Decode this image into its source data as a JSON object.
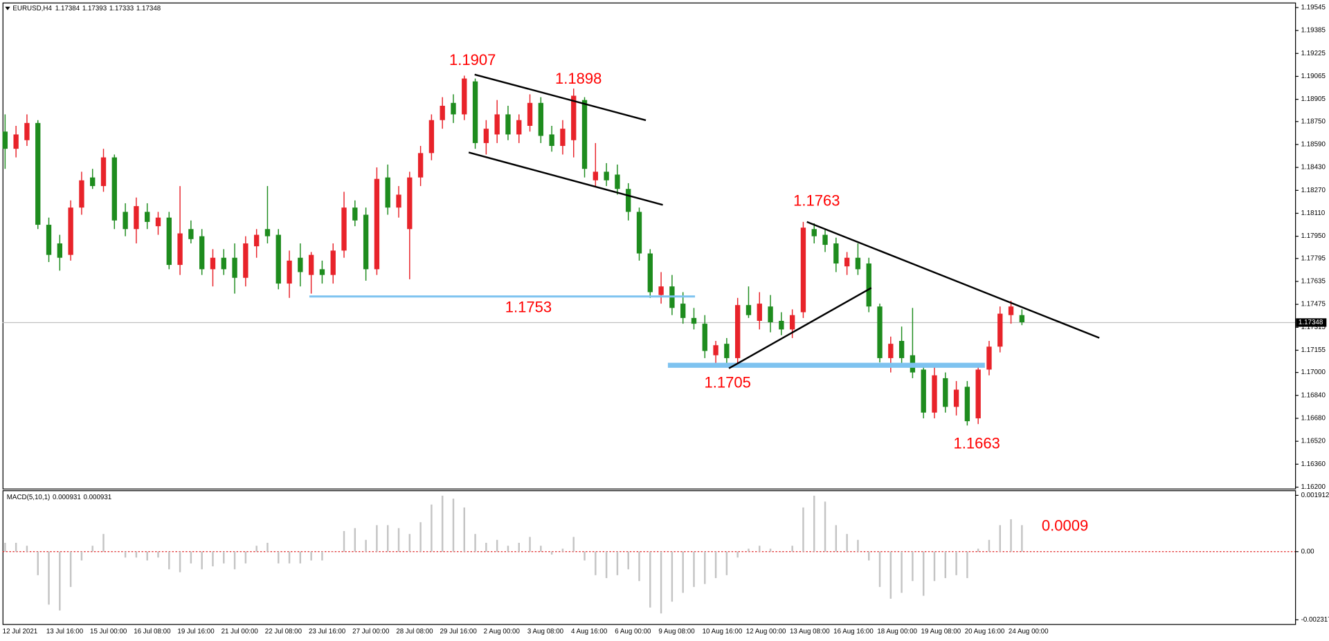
{
  "chart_data": [
    {
      "type": "candlestick",
      "title": "EURUSD,H4",
      "header_ohlc": [
        1.17384,
        1.17393,
        1.17333,
        1.17348
      ],
      "up_color": "#e8232a",
      "down_color": "#1e8c1e",
      "categories": [
        "12 Jul 2021",
        null,
        null,
        null,
        "13 Jul 16:00",
        null,
        null,
        null,
        "15 Jul 00:00",
        null,
        null,
        null,
        "16 Jul 08:00",
        null,
        null,
        null,
        "19 Jul 16:00",
        null,
        null,
        null,
        "21 Jul 00:00",
        null,
        null,
        null,
        "22 Jul 08:00",
        null,
        null,
        null,
        "23 Jul 16:00",
        null,
        null,
        null,
        "27 Jul 00:00",
        null,
        null,
        null,
        "28 Jul 08:00",
        null,
        null,
        null,
        "29 Jul 16:00",
        null,
        null,
        null,
        "2 Aug 00:00",
        null,
        null,
        null,
        "3 Aug 08:00",
        null,
        null,
        null,
        "4 Aug 16:00",
        null,
        null,
        null,
        "6 Aug 00:00",
        null,
        null,
        null,
        "9 Aug 08:00",
        null,
        null,
        null,
        "10 Aug 16:00",
        null,
        null,
        null,
        "12 Aug 00:00",
        null,
        null,
        null,
        "13 Aug 08:00",
        null,
        null,
        null,
        "16 Aug 16:00",
        null,
        null,
        null,
        "18 Aug 00:00",
        null,
        null,
        null,
        "19 Aug 08:00",
        null,
        null,
        null,
        "20 Aug 16:00",
        null,
        null,
        null,
        "24 Aug 00:00",
        null
      ],
      "ohlc": [
        [
          1.1868,
          1.188,
          1.1842,
          1.1856
        ],
        [
          1.1856,
          1.1872,
          1.185,
          1.1866
        ],
        [
          1.1862,
          1.188,
          1.1858,
          1.1874
        ],
        [
          1.1874,
          1.1876,
          1.18,
          1.1803
        ],
        [
          1.1803,
          1.1808,
          1.1777,
          1.1782
        ],
        [
          1.179,
          1.1796,
          1.1771,
          1.178
        ],
        [
          1.1782,
          1.182,
          1.1778,
          1.1815
        ],
        [
          1.1815,
          1.184,
          1.181,
          1.1834
        ],
        [
          1.1836,
          1.1842,
          1.1828,
          1.183
        ],
        [
          1.183,
          1.1856,
          1.1826,
          1.185
        ],
        [
          1.185,
          1.1852,
          1.18,
          1.1806
        ],
        [
          1.1812,
          1.1818,
          1.1795,
          1.18
        ],
        [
          1.18,
          1.1822,
          1.179,
          1.1816
        ],
        [
          1.1812,
          1.1818,
          1.18,
          1.1805
        ],
        [
          1.1802,
          1.1812,
          1.1796,
          1.1808
        ],
        [
          1.1808,
          1.1812,
          1.1772,
          1.1775
        ],
        [
          1.1775,
          1.183,
          1.1768,
          1.1797
        ],
        [
          1.18,
          1.1806,
          1.179,
          1.1793
        ],
        [
          1.1795,
          1.18,
          1.1768,
          1.1772
        ],
        [
          1.1772,
          1.1786,
          1.176,
          1.178
        ],
        [
          1.178,
          1.1786,
          1.1768,
          1.1772
        ],
        [
          1.178,
          1.179,
          1.1755,
          1.1766
        ],
        [
          1.1766,
          1.1795,
          1.176,
          1.179
        ],
        [
          1.1788,
          1.18,
          1.178,
          1.1796
        ],
        [
          1.18,
          1.183,
          1.179,
          1.1795
        ],
        [
          1.1796,
          1.18,
          1.1758,
          1.1762
        ],
        [
          1.1762,
          1.1785,
          1.1752,
          1.1778
        ],
        [
          1.178,
          1.179,
          1.176,
          1.177
        ],
        [
          1.1768,
          1.1784,
          1.1755,
          1.1782
        ],
        [
          1.1772,
          1.1778,
          1.1762,
          1.1768
        ],
        [
          1.1768,
          1.179,
          1.1762,
          1.1785
        ],
        [
          1.1785,
          1.1826,
          1.178,
          1.1815
        ],
        [
          1.1815,
          1.182,
          1.1802,
          1.1806
        ],
        [
          1.181,
          1.1815,
          1.1764,
          1.1772
        ],
        [
          1.1772,
          1.1843,
          1.1768,
          1.1835
        ],
        [
          1.1836,
          1.1845,
          1.181,
          1.1815
        ],
        [
          1.1815,
          1.183,
          1.1808,
          1.1824
        ],
        [
          1.18,
          1.184,
          1.1765,
          1.1836
        ],
        [
          1.1836,
          1.1858,
          1.183,
          1.1853
        ],
        [
          1.1853,
          1.188,
          1.1848,
          1.1876
        ],
        [
          1.1876,
          1.1892,
          1.187,
          1.1886
        ],
        [
          1.1888,
          1.1894,
          1.1874,
          1.188
        ],
        [
          1.188,
          1.1907,
          1.1876,
          1.1905
        ],
        [
          1.1903,
          1.1905,
          1.1856,
          1.186
        ],
        [
          1.186,
          1.1876,
          1.1852,
          1.187
        ],
        [
          1.1866,
          1.189,
          1.186,
          1.188
        ],
        [
          1.188,
          1.1886,
          1.1862,
          1.1866
        ],
        [
          1.1866,
          1.188,
          1.186,
          1.1876
        ],
        [
          1.1872,
          1.1894,
          1.1868,
          1.1888
        ],
        [
          1.1888,
          1.1892,
          1.186,
          1.1865
        ],
        [
          1.1866,
          1.1872,
          1.1854,
          1.1858
        ],
        [
          1.1858,
          1.1876,
          1.1852,
          1.187
        ],
        [
          1.1862,
          1.1898,
          1.185,
          1.1893
        ],
        [
          1.189,
          1.1892,
          1.1836,
          1.1842
        ],
        [
          1.1834,
          1.186,
          1.183,
          1.184
        ],
        [
          1.184,
          1.1846,
          1.183,
          1.1834
        ],
        [
          1.1838,
          1.1845,
          1.1824,
          1.1828
        ],
        [
          1.1828,
          1.1832,
          1.1806,
          1.1812
        ],
        [
          1.1812,
          1.1815,
          1.1778,
          1.1783
        ],
        [
          1.1783,
          1.1786,
          1.1752,
          1.1756
        ],
        [
          1.1754,
          1.177,
          1.1748,
          1.176
        ],
        [
          1.176,
          1.1768,
          1.174,
          1.1745
        ],
        [
          1.1748,
          1.1756,
          1.1734,
          1.1738
        ],
        [
          1.1738,
          1.1745,
          1.173,
          1.1734
        ],
        [
          1.1734,
          1.174,
          1.171,
          1.1715
        ],
        [
          1.1712,
          1.1722,
          1.1706,
          1.1719
        ],
        [
          1.172,
          1.1724,
          1.1705,
          1.171
        ],
        [
          1.171,
          1.1752,
          1.1706,
          1.1747
        ],
        [
          1.1747,
          1.176,
          1.1738,
          1.174
        ],
        [
          1.1736,
          1.1756,
          1.173,
          1.1748
        ],
        [
          1.1746,
          1.1754,
          1.1728,
          1.1735
        ],
        [
          1.1736,
          1.1742,
          1.1726,
          1.173
        ],
        [
          1.173,
          1.1744,
          1.1724,
          1.174
        ],
        [
          1.1742,
          1.1805,
          1.1738,
          1.1801
        ],
        [
          1.18,
          1.1804,
          1.179,
          1.1795
        ],
        [
          1.1796,
          1.18,
          1.1784,
          1.1789
        ],
        [
          1.179,
          1.1794,
          1.177,
          1.1776
        ],
        [
          1.1774,
          1.1784,
          1.1768,
          1.178
        ],
        [
          1.178,
          1.179,
          1.1768,
          1.1772
        ],
        [
          1.1776,
          1.178,
          1.1742,
          1.1746
        ],
        [
          1.1746,
          1.1748,
          1.1707,
          1.171
        ],
        [
          1.171,
          1.1725,
          1.17,
          1.172
        ],
        [
          1.1722,
          1.1732,
          1.1706,
          1.171
        ],
        [
          1.1712,
          1.1745,
          1.1696,
          1.17
        ],
        [
          1.1702,
          1.1706,
          1.1668,
          1.1672
        ],
        [
          1.1672,
          1.1706,
          1.1668,
          1.1698
        ],
        [
          1.1696,
          1.17,
          1.1672,
          1.1676
        ],
        [
          1.1676,
          1.1694,
          1.167,
          1.1688
        ],
        [
          1.169,
          1.1694,
          1.1663,
          1.1666
        ],
        [
          1.1668,
          1.1706,
          1.1664,
          1.1702
        ],
        [
          1.1702,
          1.1722,
          1.1698,
          1.1718
        ],
        [
          1.1718,
          1.1746,
          1.1714,
          1.1741
        ],
        [
          1.174,
          1.175,
          1.1734,
          1.1746
        ],
        [
          1.174,
          1.1744,
          1.1733,
          1.1735
        ]
      ],
      "ylim": [
        1.1619,
        1.1958
      ],
      "yticks": [
        1.19545,
        1.19385,
        1.19225,
        1.19065,
        1.18905,
        {
          "value": 1.1875,
          "label": "1.18750"
        },
        {
          "value": 1.1859,
          "label": "1.18590"
        },
        {
          "value": 1.1843,
          "label": "1.18430"
        },
        {
          "value": 1.1827,
          "label": "1.18270"
        },
        {
          "value": 1.1811,
          "label": "1.18110"
        },
        {
          "value": 1.1795,
          "label": "1.17950"
        },
        1.17795,
        1.17635,
        1.17475,
        1.17315,
        1.17155,
        {
          "value": 1.17,
          "label": "1.17000"
        },
        {
          "value": 1.1684,
          "label": "1.16840"
        },
        {
          "value": 1.1668,
          "label": "1.16680"
        },
        {
          "value": 1.1652,
          "label": "1.16520"
        },
        {
          "value": 1.1636,
          "label": "1.16360"
        },
        {
          "value": 1.162,
          "label": "1.16200"
        }
      ],
      "annotations": [
        1.1907,
        1.1898,
        1.1763,
        1.1753,
        1.1705,
        1.1663
      ]
    },
    {
      "type": "bar",
      "title": "MACD(5,10,1)",
      "legend_values": [
        0.000931,
        0.000931
      ],
      "color": "#c4c4c4",
      "values": [
        0.0003,
        0.0003,
        0.0002,
        -0.0008,
        -0.0018,
        -0.002,
        -0.0012,
        -0.0003,
        0.0002,
        0.0006,
        0,
        -0.0002,
        -0.0002,
        -0.0003,
        -0.0002,
        -0.0006,
        -0.0007,
        -0.0004,
        -0.0006,
        -0.0005,
        -0.0004,
        -0.0006,
        -0.0004,
        0.0002,
        0.0003,
        -0.0004,
        -0.0004,
        -0.0004,
        -0.0003,
        -0.0003,
        0,
        0.0007,
        0.0008,
        0.0004,
        0.0009,
        0.0009,
        0.0008,
        0.0006,
        0.001,
        0.0016,
        0.0019,
        0.0018,
        0.0015,
        0.0006,
        0.0003,
        0.0004,
        0.0002,
        0.0003,
        0.0005,
        0.0002,
        -0.0001,
        0.0001,
        0.0005,
        -0.0003,
        -0.0008,
        -0.0009,
        -0.0008,
        -0.0006,
        -0.001,
        -0.0019,
        -0.0021,
        -0.0017,
        -0.0014,
        -0.0012,
        -0.0011,
        -0.0009,
        -0.0008,
        -0.0002,
        0.0001,
        0.0002,
        0.0001,
        0,
        0.0002,
        0.0015,
        0.0019,
        0.0017,
        0.0009,
        0.0006,
        0.0004,
        -0.0003,
        -0.0012,
        -0.0016,
        -0.0014,
        -0.001,
        -0.0015,
        -0.001,
        -0.0009,
        -0.0008,
        -0.0009,
        0.0001,
        0.0004,
        0.0009,
        0.0011,
        0.0009
      ],
      "ylim": [
        -0.002461,
        0.002056
      ],
      "yticks": [
        0.001912,
        {
          "value": 0,
          "label": "0.00"
        },
        -0.002317
      ],
      "annotation": 0.0009
    }
  ]
}
